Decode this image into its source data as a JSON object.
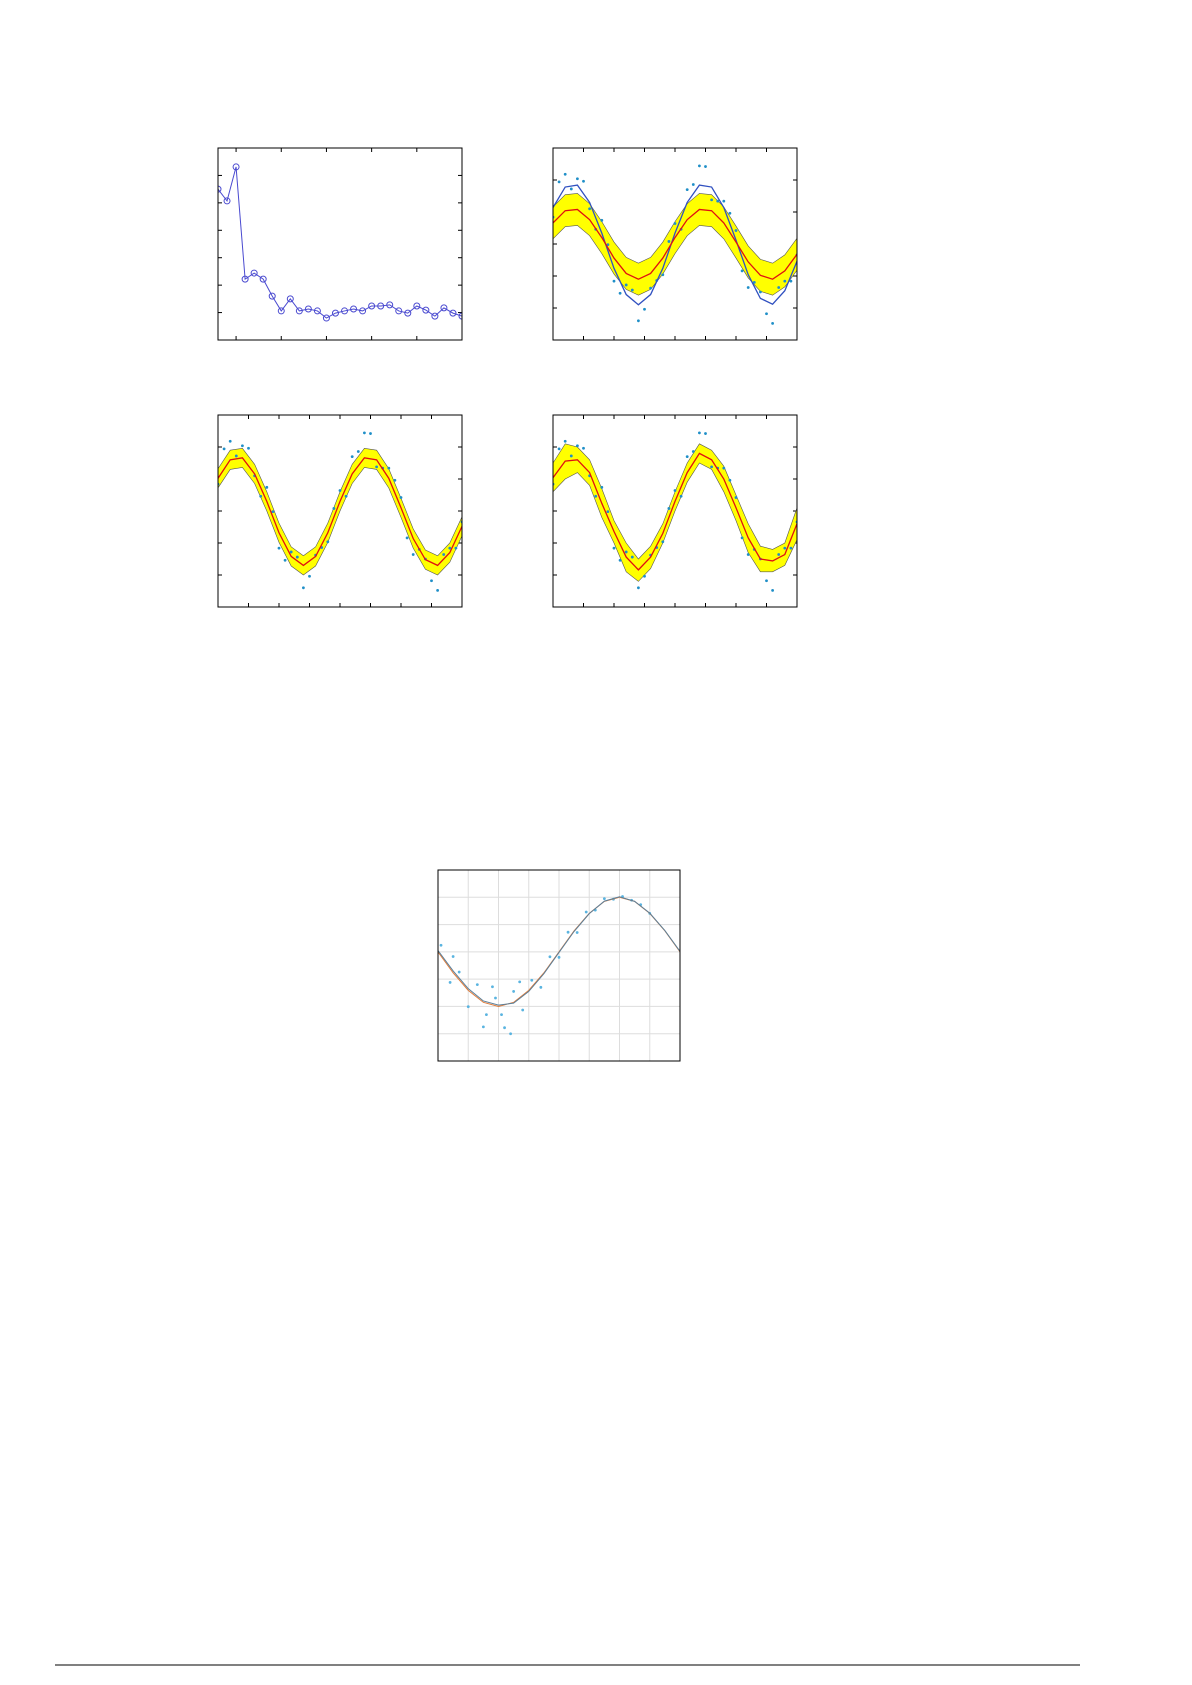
{
  "chart_data": [
    {
      "type": "line",
      "x": [
        1,
        2,
        3,
        4,
        5,
        6,
        7,
        8,
        9,
        10,
        11,
        12,
        13,
        14,
        15,
        16,
        17,
        18,
        19,
        20,
        21,
        22,
        23,
        24,
        25,
        26,
        27,
        28
      ],
      "series": [
        {
          "color": "#4a4ad0",
          "marker": "circle",
          "values": [
            5.5,
            5.07,
            6.31,
            2.22,
            2.44,
            2.22,
            1.6,
            1.06,
            1.5,
            1.06,
            1.13,
            1.06,
            0.8,
            0.98,
            1.06,
            1.13,
            1.06,
            1.24,
            1.24,
            1.28,
            1.06,
            0.98,
            1.24,
            1.09,
            0.87,
            1.17,
            0.98,
            0.87
          ]
        }
      ],
      "xlim": [
        1,
        28
      ],
      "ylim": [
        0,
        7
      ],
      "xticks": [
        3,
        8,
        13,
        18,
        23
      ],
      "yticks": [
        1,
        2,
        3,
        4,
        5,
        6
      ],
      "grid": false
    },
    {
      "type": "band",
      "x": [
        0,
        0.05,
        0.1,
        0.15,
        0.2,
        0.25,
        0.3,
        0.35,
        0.4,
        0.45,
        0.5,
        0.55,
        0.6,
        0.65,
        0.7,
        0.75,
        0.8,
        0.85,
        0.9,
        0.95,
        1
      ],
      "band": {
        "color": "#ffff00",
        "lower": [
          0.08,
          0.27,
          0.29,
          0.13,
          -0.15,
          -0.47,
          -0.71,
          -0.8,
          -0.71,
          -0.47,
          -0.15,
          0.13,
          0.29,
          0.27,
          0.08,
          -0.22,
          -0.53,
          -0.74,
          -0.8,
          -0.67,
          -0.41
        ],
        "upper": [
          0.58,
          0.77,
          0.79,
          0.63,
          0.35,
          0.03,
          -0.21,
          -0.3,
          -0.21,
          0.03,
          0.35,
          0.63,
          0.79,
          0.77,
          0.58,
          0.28,
          -0.03,
          -0.24,
          -0.3,
          -0.17,
          0.09
        ]
      },
      "series": [
        {
          "color": "#3050c0",
          "values": [
            0.57,
            0.89,
            0.92,
            0.65,
            0.17,
            -0.38,
            -0.79,
            -0.95,
            -0.79,
            -0.38,
            0.17,
            0.65,
            0.92,
            0.89,
            0.57,
            0.06,
            -0.48,
            -0.85,
            -0.94,
            -0.73,
            -0.27
          ]
        },
        {
          "color": "#e01010",
          "values": [
            0.33,
            0.52,
            0.54,
            0.38,
            0.1,
            -0.22,
            -0.46,
            -0.55,
            -0.46,
            -0.22,
            0.1,
            0.38,
            0.54,
            0.52,
            0.33,
            0.03,
            -0.28,
            -0.49,
            -0.55,
            -0.42,
            -0.16
          ]
        }
      ],
      "points": {
        "color": "#1f8fc8",
        "x": [
          0.025,
          0.075,
          0.125,
          0.175,
          0.225,
          0.275,
          0.325,
          0.375,
          0.425,
          0.475,
          0.525,
          0.575,
          0.625,
          0.675,
          0.725,
          0.775,
          0.825,
          0.875,
          0.925,
          0.975,
          0,
          0.05,
          0.1,
          0.15,
          0.2,
          0.25,
          0.3,
          0.35,
          0.4,
          0.45,
          0.5,
          0.55,
          0.6,
          0.65,
          0.7,
          0.75,
          0.8,
          0.85,
          0.9,
          0.95,
          1
        ],
        "y": [
          0.97,
          0.86,
          0.98,
          0.23,
          -0.01,
          -0.77,
          -0.72,
          -1.02,
          -0.57,
          0.04,
          0.23,
          0.93,
          1.21,
          0.67,
          0.48,
          -0.42,
          -0.6,
          -1.09,
          -0.68,
          -0.58,
          0.42,
          1.09,
          1.02,
          0.55,
          0.37,
          -0.58,
          -0.64,
          -1.2,
          -0.69,
          -0.48,
          0.32,
          0.85,
          1.22,
          0.69,
          0.67,
          0.21,
          -0.68,
          -0.75,
          -1.24,
          -0.58,
          -0.17
        ]
      },
      "xlim": [
        0,
        1
      ],
      "ylim": [
        -1.5,
        1.5
      ],
      "xticks": [
        0.125,
        0.25,
        0.375,
        0.5,
        0.625,
        0.75,
        0.875
      ],
      "yticks": [
        -1,
        -0.5,
        0,
        0.5,
        1
      ],
      "grid": false
    },
    {
      "type": "band",
      "x": [
        0,
        0.05,
        0.1,
        0.15,
        0.2,
        0.25,
        0.3,
        0.35,
        0.4,
        0.45,
        0.5,
        0.55,
        0.6,
        0.65,
        0.7,
        0.75,
        0.8,
        0.85,
        0.9,
        0.95,
        1
      ],
      "band": {
        "color": "#ffff00",
        "lower": [
          0.36,
          0.65,
          0.68,
          0.43,
          -0.0,
          -0.49,
          -0.86,
          -1.0,
          -0.86,
          -0.49,
          -0.0,
          0.43,
          0.68,
          0.65,
          0.36,
          -0.1,
          -0.58,
          -0.91,
          -1.0,
          -0.8,
          -0.39
        ],
        "upper": [
          0.66,
          0.95,
          0.98,
          0.73,
          0.3,
          -0.19,
          -0.56,
          -0.7,
          -0.56,
          -0.19,
          0.3,
          0.73,
          0.98,
          0.95,
          0.66,
          0.2,
          -0.28,
          -0.61,
          -0.7,
          -0.5,
          -0.09
        ]
      },
      "series": [
        {
          "color": "#e01010",
          "values": [
            0.51,
            0.8,
            0.83,
            0.58,
            0.15,
            -0.34,
            -0.71,
            -0.85,
            -0.71,
            -0.34,
            0.15,
            0.58,
            0.83,
            0.8,
            0.51,
            0.05,
            -0.43,
            -0.76,
            -0.85,
            -0.65,
            -0.24
          ]
        }
      ],
      "points": {
        "color": "#1f8fc8",
        "x": [
          0.025,
          0.075,
          0.125,
          0.175,
          0.225,
          0.275,
          0.325,
          0.375,
          0.425,
          0.475,
          0.525,
          0.575,
          0.625,
          0.675,
          0.725,
          0.775,
          0.825,
          0.875,
          0.925,
          0.975,
          0,
          0.05,
          0.1,
          0.15,
          0.2,
          0.25,
          0.3,
          0.35,
          0.4,
          0.45,
          0.5,
          0.55,
          0.6,
          0.65,
          0.7,
          0.75,
          0.8,
          0.85,
          0.9,
          0.95,
          1
        ],
        "y": [
          0.97,
          0.86,
          0.98,
          0.23,
          -0.01,
          -0.77,
          -0.72,
          -1.02,
          -0.57,
          0.04,
          0.23,
          0.93,
          1.21,
          0.67,
          0.48,
          -0.42,
          -0.6,
          -1.09,
          -0.68,
          -0.58,
          0.42,
          1.09,
          1.02,
          0.55,
          0.37,
          -0.58,
          -0.64,
          -1.2,
          -0.69,
          -0.48,
          0.32,
          0.85,
          1.22,
          0.69,
          0.67,
          0.21,
          -0.68,
          -0.75,
          -1.24,
          -0.58,
          -0.17
        ]
      },
      "xlim": [
        0,
        1
      ],
      "ylim": [
        -1.5,
        1.5
      ],
      "xticks": [
        0.125,
        0.25,
        0.375,
        0.5,
        0.625,
        0.75,
        0.875
      ],
      "yticks": [
        -1,
        -0.5,
        0,
        0.5,
        1
      ],
      "grid": false
    },
    {
      "type": "band",
      "x": [
        0,
        0.05,
        0.1,
        0.15,
        0.2,
        0.25,
        0.3,
        0.35,
        0.4,
        0.45,
        0.5,
        0.55,
        0.6,
        0.65,
        0.7,
        0.75,
        0.8,
        0.85,
        0.9,
        0.95,
        1
      ],
      "band": {
        "color": "#ffff00",
        "lower": [
          0.3,
          0.5,
          0.6,
          0.4,
          -0.1,
          -0.5,
          -0.95,
          -1.1,
          -0.9,
          -0.5,
          0.0,
          0.45,
          0.75,
          0.65,
          0.3,
          -0.15,
          -0.65,
          -0.95,
          -0.95,
          -0.85,
          -0.45
        ],
        "upper": [
          0.75,
          1.05,
          1.0,
          0.8,
          0.35,
          -0.15,
          -0.5,
          -0.75,
          -0.55,
          -0.2,
          0.3,
          0.75,
          1.05,
          0.95,
          0.7,
          0.25,
          -0.2,
          -0.55,
          -0.6,
          -0.5,
          0.05
        ]
      },
      "series": [
        {
          "color": "#e01010",
          "values": [
            0.52,
            0.78,
            0.8,
            0.6,
            0.12,
            -0.32,
            -0.72,
            -0.92,
            -0.72,
            -0.35,
            0.15,
            0.6,
            0.9,
            0.8,
            0.5,
            0.05,
            -0.42,
            -0.75,
            -0.78,
            -0.68,
            -0.2
          ]
        }
      ],
      "points": {
        "color": "#1f8fc8",
        "x": [
          0.025,
          0.075,
          0.125,
          0.175,
          0.225,
          0.275,
          0.325,
          0.375,
          0.425,
          0.475,
          0.525,
          0.575,
          0.625,
          0.675,
          0.725,
          0.775,
          0.825,
          0.875,
          0.925,
          0.975,
          0,
          0.05,
          0.1,
          0.15,
          0.2,
          0.25,
          0.3,
          0.35,
          0.4,
          0.45,
          0.5,
          0.55,
          0.6,
          0.65,
          0.7,
          0.75,
          0.8,
          0.85,
          0.9,
          0.95,
          1
        ],
        "y": [
          0.97,
          0.86,
          0.98,
          0.23,
          -0.01,
          -0.77,
          -0.72,
          -1.02,
          -0.57,
          0.04,
          0.23,
          0.93,
          1.21,
          0.67,
          0.48,
          -0.42,
          -0.6,
          -1.09,
          -0.68,
          -0.58,
          0.42,
          1.09,
          1.02,
          0.55,
          0.37,
          -0.58,
          -0.64,
          -1.2,
          -0.69,
          -0.48,
          0.32,
          0.85,
          1.22,
          0.69,
          0.67,
          0.21,
          -0.68,
          -0.75,
          -1.24,
          -0.58,
          -0.17
        ]
      },
      "xlim": [
        0,
        1
      ],
      "ylim": [
        -1.5,
        1.5
      ],
      "xticks": [
        0.125,
        0.25,
        0.375,
        0.5,
        0.625,
        0.75,
        0.875
      ],
      "yticks": [
        -1,
        -0.5,
        0,
        0.5,
        1
      ],
      "grid": false
    },
    {
      "type": "scatter",
      "x": [
        0,
        0.5,
        1,
        1.5,
        2,
        2.5,
        3,
        3.5,
        4,
        4.5,
        5,
        5.5,
        6,
        6.5,
        7,
        7.5,
        8
      ],
      "series": [
        {
          "color": "#e07b39",
          "values": [
            4,
            3.23,
            2.59,
            2.15,
            2,
            2.15,
            2.59,
            3.23,
            4,
            4.77,
            5.41,
            5.85,
            6,
            5.85,
            5.41,
            4.77,
            4
          ]
        },
        {
          "color": "#5a7f9a",
          "values": [
            4.05,
            3.3,
            2.65,
            2.2,
            2.05,
            2.12,
            2.55,
            3.2,
            3.98,
            4.75,
            5.4,
            5.86,
            6.02,
            5.85,
            5.42,
            4.78,
            4.02
          ]
        }
      ],
      "points": {
        "color": "#5ab4e0",
        "x": [
          0.1,
          0.4,
          0.7,
          1.0,
          1.3,
          1.6,
          1.9,
          2.2,
          2.5,
          2.8,
          3.1,
          3.4,
          3.7,
          4.0,
          4.3,
          4.6,
          4.9,
          5.2,
          5.5,
          5.8,
          6.1,
          6.4,
          6.7,
          7.0,
          0.5,
          1.5,
          1.8,
          2.1,
          2.4,
          2.7
        ],
        "y": [
          4.24,
          2.88,
          3.26,
          1.99,
          2.8,
          1.7,
          2.31,
          1.22,
          2.55,
          1.87,
          2.96,
          2.7,
          3.82,
          3.8,
          4.72,
          4.71,
          5.46,
          5.53,
          5.95,
          5.93,
          6.03,
          5.89,
          5.73,
          5.41,
          3.83,
          1.25,
          2.72,
          1.7,
          1.0,
          2.9
        ]
      },
      "xlim": [
        0,
        8
      ],
      "ylim": [
        0,
        7
      ],
      "xticks": [
        1,
        2,
        3,
        4,
        5,
        6,
        7
      ],
      "yticks": [
        1,
        2,
        3,
        4,
        5,
        6
      ],
      "grid": true
    }
  ]
}
